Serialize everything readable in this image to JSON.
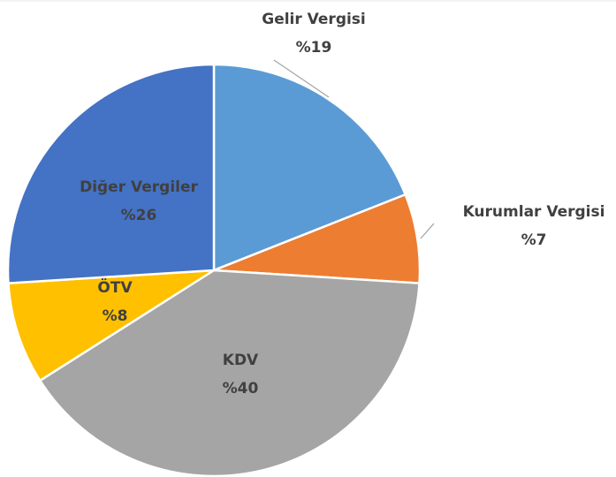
{
  "chart_data": {
    "type": "pie",
    "categories": [
      "Gelir Vergisi",
      "Kurumlar Vergisi",
      "KDV",
      "ÖTV",
      "Diğer Vergiler"
    ],
    "values": [
      19,
      7,
      40,
      8,
      26
    ],
    "value_labels": [
      "%19",
      "%7",
      "%40",
      "%8",
      "%26"
    ],
    "colors": [
      "#5b9bd5",
      "#ed7d31",
      "#a5a5a5",
      "#ffc000",
      "#4472c4"
    ]
  }
}
